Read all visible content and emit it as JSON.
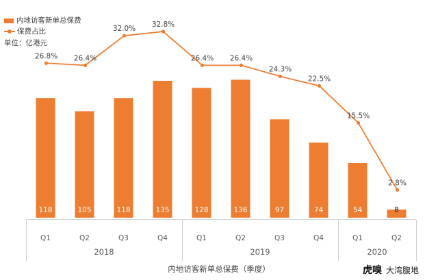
{
  "legend": {
    "bar_label": "内地访客新单总保费",
    "line_label": "保费占比",
    "unit": "单位：亿港元"
  },
  "chart_data": {
    "type": "bar+line",
    "categories": [
      "Q1",
      "Q2",
      "Q3",
      "Q4",
      "Q1",
      "Q2",
      "Q3",
      "Q4",
      "Q1",
      "Q2"
    ],
    "groups": [
      {
        "label": "2018",
        "count": 4
      },
      {
        "label": "2019",
        "count": 4
      },
      {
        "label": "2020",
        "count": 2
      }
    ],
    "series": [
      {
        "name": "内地访客新单总保费",
        "type": "bar",
        "values": [
          118,
          105,
          118,
          135,
          128,
          136,
          97,
          74,
          54,
          8
        ],
        "color": "#ED7D31"
      },
      {
        "name": "保费占比",
        "type": "line",
        "values": [
          26.8,
          26.4,
          32.0,
          32.8,
          26.4,
          26.4,
          24.3,
          22.5,
          15.5,
          2.8
        ],
        "labels": [
          "26.8%",
          "26.4%",
          "32.0%",
          "32.8%",
          "26.4%",
          "26.4%",
          "24.3%",
          "22.5%",
          "15.5%",
          "2.8%"
        ],
        "color": "#ED7D31"
      }
    ],
    "bar_ylim": [
      0,
      135
    ],
    "line_ylim": [
      0,
      32.8
    ],
    "xlabel": "内地访客新单总保费（季度）",
    "legend_position": "top-left",
    "grid": false
  },
  "branding": {
    "logo": "虎嗅",
    "source": "大湾腹地"
  }
}
